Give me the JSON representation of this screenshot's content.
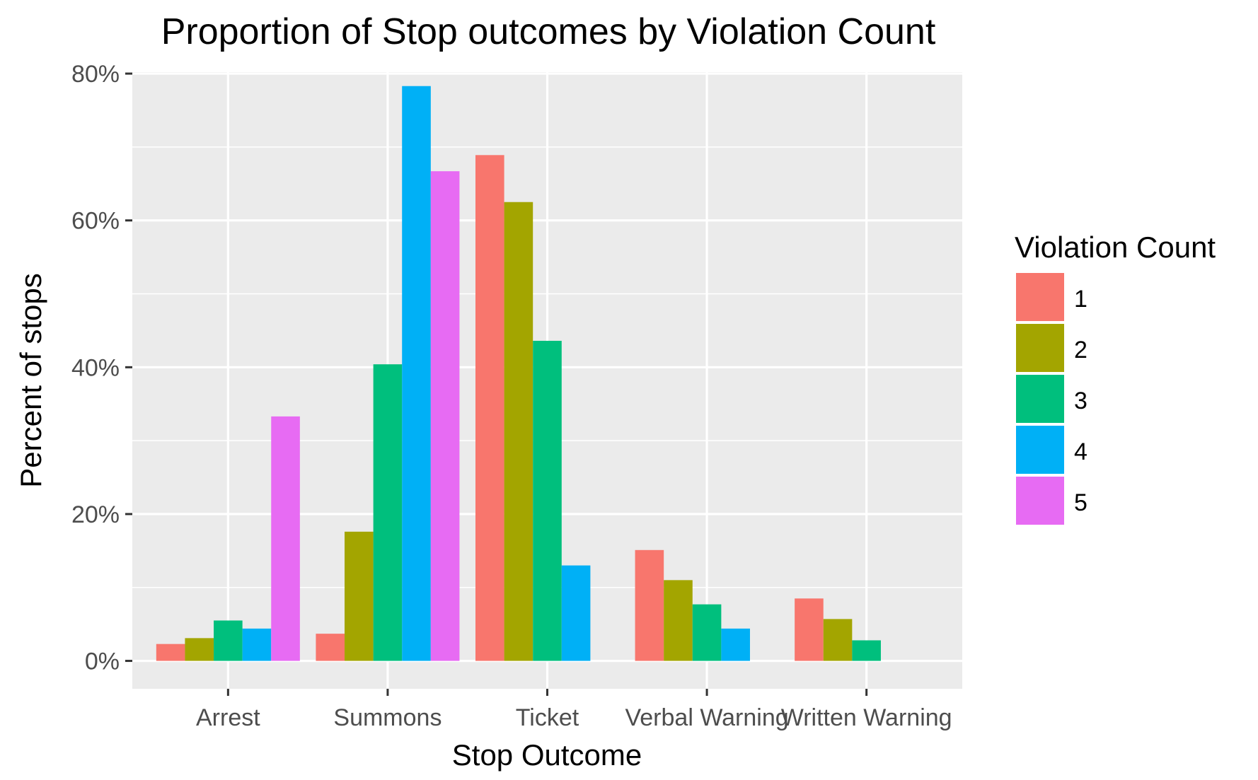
{
  "chart_data": {
    "type": "bar",
    "title": "Proportion of Stop outcomes by Violation Count",
    "xlabel": "Stop Outcome",
    "ylabel": "Percent of stops",
    "categories": [
      "Arrest",
      "Summons",
      "Ticket",
      "Verbal Warning",
      "Written Warning"
    ],
    "series": [
      {
        "name": "1",
        "color": "#F8766D",
        "values": [
          2.3,
          3.7,
          68.9,
          15.1,
          8.5
        ]
      },
      {
        "name": "2",
        "color": "#A3A500",
        "values": [
          3.1,
          17.6,
          62.5,
          11.0,
          5.7
        ]
      },
      {
        "name": "3",
        "color": "#00BF7D",
        "values": [
          5.5,
          40.4,
          43.6,
          7.7,
          2.8
        ]
      },
      {
        "name": "4",
        "color": "#00B0F6",
        "values": [
          4.4,
          78.3,
          13.0,
          4.4,
          null
        ]
      },
      {
        "name": "5",
        "color": "#E76BF3",
        "values": [
          33.3,
          66.7,
          null,
          null,
          null
        ]
      }
    ],
    "ylim": [
      -3.8,
      80.2
    ],
    "yticks": [
      0,
      20,
      40,
      60,
      80
    ],
    "ytick_labels": [
      "0%",
      "20%",
      "40%",
      "60%",
      "80%"
    ],
    "y_unit": "%",
    "grid": true,
    "legend": {
      "title": "Violation Count",
      "position": "right"
    },
    "colors": {
      "panel": "#EBEBEB",
      "grid": "#FFFFFF",
      "text": "#000000",
      "tick_text": "#4D4D4D",
      "tick_mark": "#333333"
    }
  }
}
